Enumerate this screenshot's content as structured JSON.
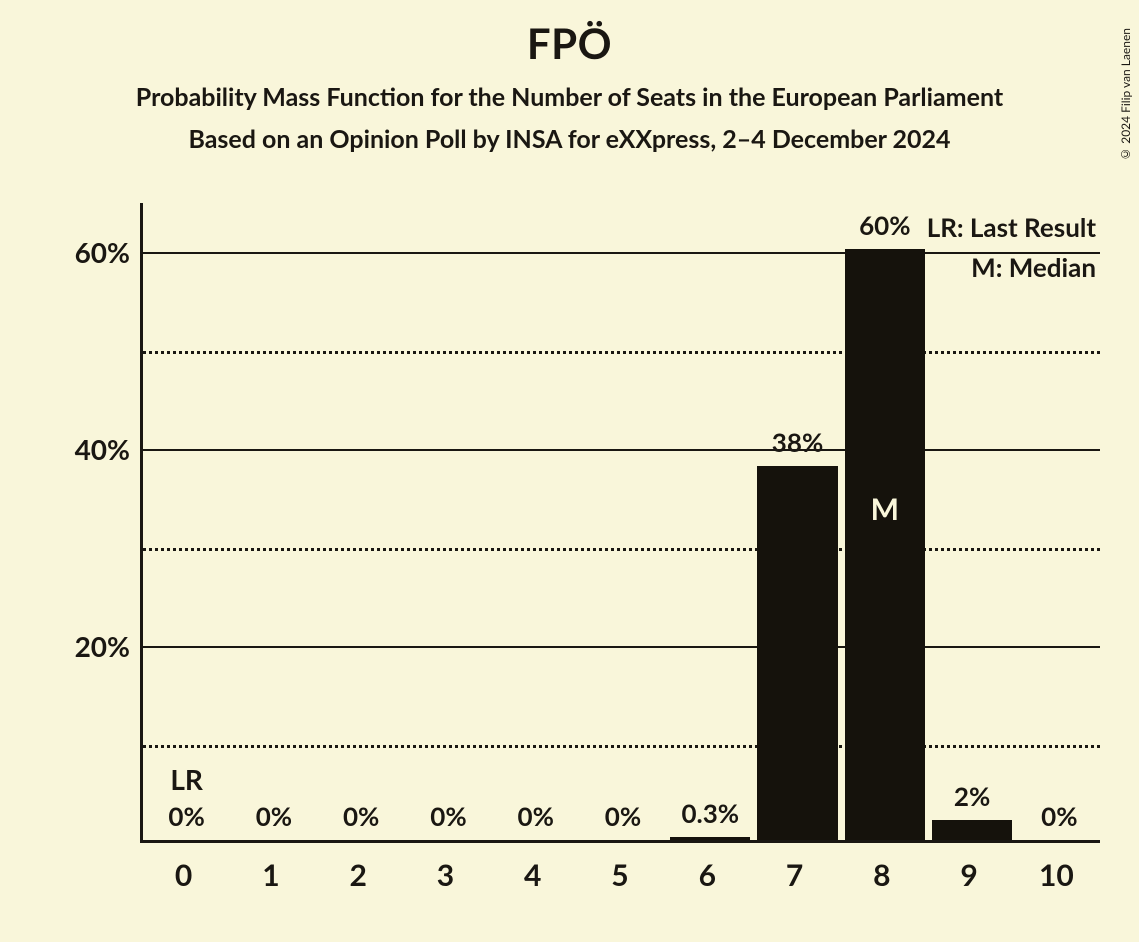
{
  "title": "FPÖ",
  "subtitle1": "Probability Mass Function for the Number of Seats in the European Parliament",
  "subtitle2": "Based on an Opinion Poll by INSA for eXXpress, 2–4 December 2024",
  "copyright": "© 2024 Filip van Laenen",
  "legend": {
    "lr": "LR: Last Result",
    "m": "M: Median"
  },
  "chart": {
    "type": "bar",
    "categories": [
      "0",
      "1",
      "2",
      "3",
      "4",
      "5",
      "6",
      "7",
      "8",
      "9",
      "10"
    ],
    "values_pct": [
      0,
      0,
      0,
      0,
      0,
      0,
      0.3,
      38,
      60,
      2,
      0
    ],
    "value_labels": [
      "0%",
      "0%",
      "0%",
      "0%",
      "0%",
      "0%",
      "0.3%",
      "38%",
      "60%",
      "2%",
      "0%"
    ],
    "lr_index": 0,
    "lr_text": "LR",
    "median_index": 8,
    "median_text": "M",
    "ylim": [
      0,
      65
    ],
    "ytick_major": [
      20,
      40,
      60
    ],
    "ytick_minor": [
      10,
      30,
      50
    ],
    "ytick_labels": [
      "20%",
      "40%",
      "60%"
    ],
    "bar_color": "#15120c",
    "background_color": "#f9f6da",
    "axis_color": "#1a1712",
    "grid_color": "#1a1712",
    "bar_width_ratio": 0.92,
    "title_fontsize": 42,
    "subtitle_fontsize": 25,
    "axis_label_fontsize": 28,
    "value_label_fontsize": 26,
    "xlabel_fontsize": 30,
    "legend_fontsize": 26
  }
}
